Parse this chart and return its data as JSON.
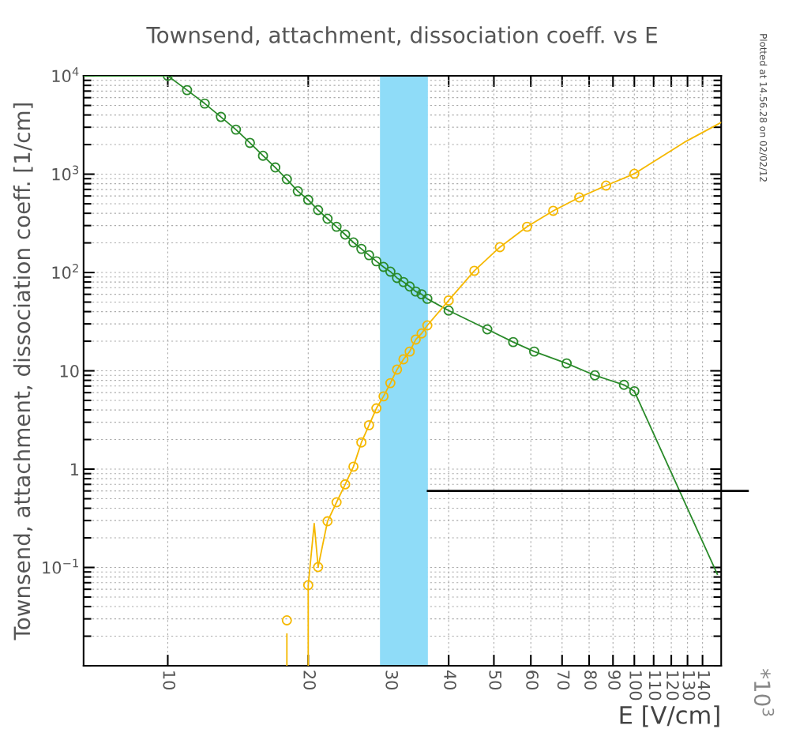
{
  "chart_data": {
    "type": "line",
    "title": "Townsend, attachment, dissociation coeff. vs E",
    "xlabel": "E [V/cm]",
    "ylabel": "Townsend, attachment, dissociation coeff. [1/cm]",
    "log": "xy",
    "grid": true,
    "xlim": [
      6.6,
      153.5
    ],
    "xticks": [
      10,
      20,
      30,
      40,
      50,
      60,
      70,
      80,
      90,
      100,
      110,
      120,
      130,
      140
    ],
    "ylim": [
      0.01,
      10000
    ],
    "yticks": [
      {
        "value": 0.01,
        "label": null
      },
      {
        "value": 0.02,
        "label": null
      },
      {
        "value": 0.03,
        "label": null
      },
      {
        "value": 0.04,
        "label": null
      },
      {
        "value": 0.05,
        "label": null
      },
      {
        "value": 0.06,
        "label": null
      },
      {
        "value": 0.07,
        "label": null
      },
      {
        "value": 0.08,
        "label": null
      },
      {
        "value": 0.09,
        "label": null
      },
      {
        "value": 0.1,
        "label": "10$^{−1}$"
      },
      {
        "value": 0.2,
        "label": null
      },
      {
        "value": 0.3,
        "label": null
      },
      {
        "value": 0.4,
        "label": null
      },
      {
        "value": 0.5,
        "label": null
      },
      {
        "value": 0.6,
        "label": null
      },
      {
        "value": 0.7,
        "label": null
      },
      {
        "value": 0.8,
        "label": null
      },
      {
        "value": 0.9,
        "label": null
      },
      1,
      {
        "value": 2,
        "label": null
      },
      {
        "value": 3,
        "label": null
      },
      {
        "value": 4,
        "label": null
      },
      {
        "value": 5,
        "label": null
      },
      {
        "value": 6,
        "label": null
      },
      {
        "value": 7,
        "label": null
      },
      {
        "value": 8,
        "label": null
      },
      {
        "value": 9,
        "label": null
      },
      10,
      {
        "value": 20,
        "label": null
      },
      {
        "value": 30,
        "label": null
      },
      {
        "value": 40,
        "label": null
      },
      {
        "value": 50,
        "label": null
      },
      {
        "value": 60,
        "label": null
      },
      {
        "value": 70,
        "label": null
      },
      {
        "value": 80,
        "label": null
      },
      {
        "value": 90,
        "label": null
      },
      {
        "value": 100,
        "label": "10$^{2}$"
      },
      {
        "value": 200,
        "label": null
      },
      {
        "value": 300,
        "label": null
      },
      {
        "value": 400,
        "label": null
      },
      {
        "value": 500,
        "label": null
      },
      {
        "value": 600,
        "label": null
      },
      {
        "value": 700,
        "label": null
      },
      {
        "value": 800,
        "label": null
      },
      {
        "value": 900,
        "label": null
      },
      {
        "value": 1000,
        "label": "10$^{3}$"
      },
      {
        "value": 2000,
        "label": null
      },
      {
        "value": 3000,
        "label": null
      },
      {
        "value": 4000,
        "label": null
      },
      {
        "value": 5000,
        "label": null
      },
      {
        "value": 6000,
        "label": null
      },
      {
        "value": 7000,
        "label": null
      },
      {
        "value": 8000,
        "label": null
      },
      {
        "value": 9000,
        "label": null
      },
      {
        "value": 10000,
        "label": "10$^{4}$"
      }
    ],
    "series": [
      {
        "color": "#2a8a2a",
        "x": [
          6.6,
          10
        ],
        "values": [
          10000,
          10000
        ]
      },
      {
        "marker": "circle",
        "color": "#2a8a2a",
        "x": [
          10,
          11,
          12,
          13,
          14,
          15,
          16,
          17,
          18,
          19,
          20,
          21,
          22,
          23,
          24,
          25,
          26,
          27,
          28,
          29,
          30,
          31,
          32,
          33,
          34,
          35,
          36,
          40,
          48.4,
          55,
          61,
          71.6,
          82.3,
          95,
          100
        ],
        "values": [
          10000,
          7160,
          5230,
          3820,
          2840,
          2080,
          1540,
          1170,
          887,
          671,
          548,
          431,
          352,
          292,
          243,
          202,
          174,
          150,
          130,
          114,
          102,
          88,
          80,
          72,
          64,
          60,
          54,
          41,
          26.4,
          19.6,
          15.7,
          11.9,
          9.0,
          7.2,
          6.2
        ]
      },
      {
        "color": "#2a8a2a",
        "x": [
          100,
          150.6
        ],
        "values": [
          6.2,
          0.0855
        ]
      },
      {
        "color": "#f5b800",
        "x": [
          18,
          18
        ],
        "values": [
          0.01,
          0.021
        ]
      },
      {
        "type": "scatter",
        "marker": "circle",
        "color": "#f5b800",
        "x": [
          18
        ],
        "values": [
          0.029
        ]
      },
      {
        "color": "#f5b800",
        "x": [
          20,
          20,
          20.6,
          21
        ],
        "values": [
          0.01,
          0.066,
          0.28,
          0.101
        ]
      },
      {
        "marker": "circle",
        "color": "#f5b800",
        "x": [
          20
        ],
        "values": [
          0.066
        ]
      },
      {
        "marker": "circle",
        "color": "#f5b800",
        "x": [
          21,
          22,
          23,
          24,
          25,
          26,
          27,
          28,
          29,
          30,
          31,
          32,
          33,
          34,
          35,
          36,
          40,
          45.4,
          51.5,
          58.9,
          67,
          76.2,
          87,
          100
        ],
        "values": [
          0.101,
          0.295,
          0.46,
          0.7,
          1.06,
          1.87,
          2.8,
          4.15,
          5.5,
          7.5,
          10.3,
          13.1,
          15.7,
          20.8,
          24,
          29,
          52,
          104,
          181,
          292,
          424,
          580,
          765,
          1010
        ]
      },
      {
        "color": "#f5b800",
        "x": [
          100,
          128,
          153.5
        ],
        "values": [
          1010,
          2110,
          3360
        ]
      }
    ],
    "bands": [
      {
        "axis": "x",
        "from": 28.5,
        "to": 36.1,
        "color": "#8fdcf8"
      }
    ],
    "ref_lines": [
      {
        "axis": "y",
        "value": 0.6,
        "color": "#000000"
      }
    ],
    "annotations": [
      "Plotted at 14.56.28 on 02/02/12",
      "*10$^{3}$"
    ]
  }
}
